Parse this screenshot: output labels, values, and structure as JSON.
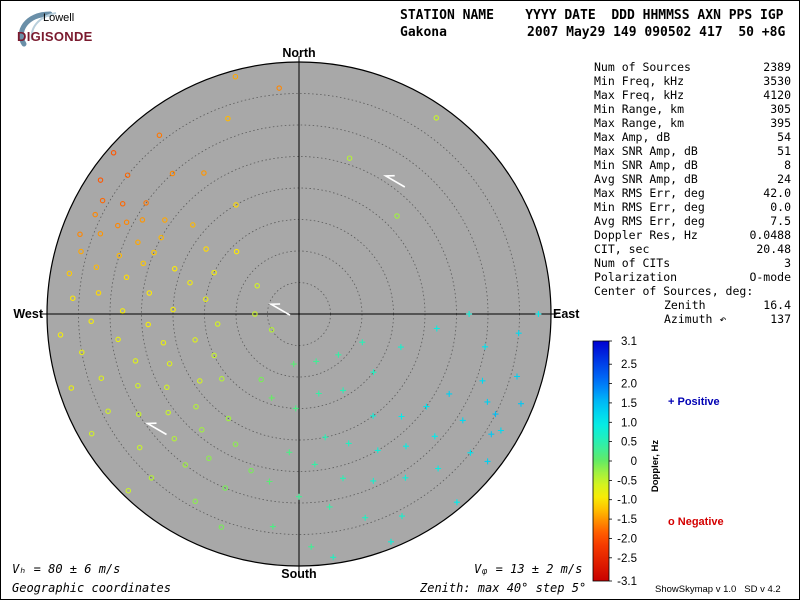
{
  "logo": {
    "line1": "Lowell",
    "line2": "DIGISONDE"
  },
  "header": {
    "row1": "STATION NAME    YYYY DATE  DDD HHMMSS AXN PPS IGP",
    "station": "Gakona",
    "values": "2007 May29 149 090502 417  50 +8G"
  },
  "params": [
    {
      "label": "Num of Sources",
      "value": "2389"
    },
    {
      "label": "Min Freq, kHz",
      "value": "3530"
    },
    {
      "label": "Max Freq, kHz",
      "value": "4120"
    },
    {
      "label": "Min Range, km",
      "value": "305"
    },
    {
      "label": "Max Range, km",
      "value": "395"
    },
    {
      "label": "Max Amp, dB",
      "value": "54"
    },
    {
      "label": "Max SNR Amp, dB",
      "value": "51"
    },
    {
      "label": "Min SNR Amp, dB",
      "value": "8"
    },
    {
      "label": "Avg SNR Amp, dB",
      "value": "24"
    },
    {
      "label": "Max RMS Err, deg",
      "value": "42.0"
    },
    {
      "label": "Min RMS Err, deg",
      "value": "0.0"
    },
    {
      "label": "Avg RMS Err, deg",
      "value": "7.5"
    },
    {
      "label": "Doppler Res, Hz",
      "value": "0.0488"
    },
    {
      "label": "CIT, sec",
      "value": "20.48"
    },
    {
      "label": "Num of CITs",
      "value": "3"
    },
    {
      "label": "Polarization",
      "value": "O-mode"
    }
  ],
  "center": {
    "header": "Center of Sources, deg:",
    "zenith_label": "Zenith",
    "zenith_value": "16.4",
    "azimuth_label": "Azimuth",
    "azimuth_arrow": "↶",
    "azimuth_value": "137"
  },
  "legend": {
    "positive": "+ Positive",
    "negative": "o Negative"
  },
  "footer": {
    "vh": "Vₕ = 80 ± 6 m/s",
    "vz": "Vᵩ = 13 ± 2 m/s",
    "coords": "Geographic coordinates",
    "zenith": "Zenith: max 40°  step 5°",
    "tool": "ShowSkymap v 1.0   SD v 4.2"
  },
  "chart_data": {
    "type": "scatter",
    "projection": "polar-skymap",
    "directions": {
      "north": "North",
      "south": "South",
      "east": "East",
      "west": "West"
    },
    "zenith_max_deg": 40,
    "zenith_step_deg": 5,
    "colorbar": {
      "label": "Doppler, Hz",
      "min": -3.1,
      "max": 3.1,
      "ticks": [
        "3.1",
        "2.5",
        "2.0",
        "1.5",
        "1.0",
        "0.5",
        "0",
        "-0.5",
        "-1.0",
        "-1.5",
        "-2.0",
        "-2.5",
        "-3.1"
      ]
    },
    "colors": {
      "disk": "#a8a8a8",
      "ring": "#5a5a5a",
      "positive_label": "#0000b4",
      "negative_label": "#d40000"
    },
    "points": [
      {
        "az": 300,
        "zen": 36,
        "doppler": -1.8
      },
      {
        "az": 302,
        "zen": 33,
        "doppler": -1.8
      },
      {
        "az": 296,
        "zen": 36,
        "doppler": -1.6
      },
      {
        "az": 298,
        "zen": 31,
        "doppler": -1.6
      },
      {
        "az": 304,
        "zen": 38,
        "doppler": -1.9
      },
      {
        "az": 292,
        "zen": 34,
        "doppler": -1.5
      },
      {
        "az": 290,
        "zen": 37,
        "doppler": -1.6
      },
      {
        "az": 306,
        "zen": 30,
        "doppler": -1.7
      },
      {
        "az": 288,
        "zen": 30,
        "doppler": -1.3
      },
      {
        "az": 294,
        "zen": 28,
        "doppler": -1.4
      },
      {
        "az": 286,
        "zen": 36,
        "doppler": -1.4
      },
      {
        "az": 299,
        "zen": 25,
        "doppler": -1.3
      },
      {
        "az": 283,
        "zen": 33,
        "doppler": -1.3
      },
      {
        "az": 309,
        "zen": 35,
        "doppler": -1.8
      },
      {
        "az": 311,
        "zen": 39,
        "doppler": -1.9
      },
      {
        "az": 280,
        "zen": 37,
        "doppler": -1.2
      },
      {
        "az": 296,
        "zen": 32,
        "doppler": -1.6
      },
      {
        "az": 301,
        "zen": 29,
        "doppler": -1.5
      },
      {
        "az": 293,
        "zen": 25,
        "doppler": -1.2
      },
      {
        "az": 305,
        "zen": 26,
        "doppler": -1.4
      },
      {
        "az": 288,
        "zen": 26,
        "doppler": -1.2
      },
      {
        "az": 282,
        "zen": 28,
        "doppler": -1.1
      },
      {
        "az": 276,
        "zen": 32,
        "doppler": -1.1
      },
      {
        "az": 274,
        "zen": 36,
        "doppler": -1.0
      },
      {
        "az": 278,
        "zen": 24,
        "doppler": -1.0
      },
      {
        "az": 271,
        "zen": 28,
        "doppler": -0.9
      },
      {
        "az": 268,
        "zen": 33,
        "doppler": -0.9
      },
      {
        "az": 266,
        "zen": 24,
        "doppler": -0.9
      },
      {
        "az": 262,
        "zen": 29,
        "doppler": -0.8
      },
      {
        "az": 260,
        "zen": 35,
        "doppler": -0.8
      },
      {
        "az": 258,
        "zen": 22,
        "doppler": -0.8
      },
      {
        "az": 254,
        "zen": 27,
        "doppler": -0.7
      },
      {
        "az": 252,
        "zen": 33,
        "doppler": -0.7
      },
      {
        "az": 249,
        "zen": 22,
        "doppler": -0.7
      },
      {
        "az": 246,
        "zen": 28,
        "doppler": -0.6
      },
      {
        "az": 243,
        "zen": 34,
        "doppler": -0.6
      },
      {
        "az": 241,
        "zen": 24,
        "doppler": -0.6
      },
      {
        "az": 238,
        "zen": 30,
        "doppler": -0.5
      },
      {
        "az": 236,
        "zen": 19,
        "doppler": -0.6
      },
      {
        "az": 233,
        "zen": 26,
        "doppler": -0.5
      },
      {
        "az": 230,
        "zen": 33,
        "doppler": -0.5
      },
      {
        "az": 228,
        "zen": 22,
        "doppler": -0.4
      },
      {
        "az": 225,
        "zen": 28,
        "doppler": -0.4
      },
      {
        "az": 222,
        "zen": 35,
        "doppler": -0.4
      },
      {
        "az": 220,
        "zen": 24,
        "doppler": -0.3
      },
      {
        "az": 217,
        "zen": 30,
        "doppler": -0.3
      },
      {
        "az": 214,
        "zen": 20,
        "doppler": -0.3
      },
      {
        "az": 212,
        "zen": 27,
        "doppler": -0.2
      },
      {
        "az": 209,
        "zen": 34,
        "doppler": -0.2
      },
      {
        "az": 206,
        "zen": 23,
        "doppler": -0.2
      },
      {
        "az": 203,
        "zen": 30,
        "doppler": -0.1
      },
      {
        "az": 200,
        "zen": 36,
        "doppler": -0.1
      },
      {
        "az": 197,
        "zen": 26,
        "doppler": -0.1
      },
      {
        "az": 272,
        "zen": 20,
        "doppler": -0.9
      },
      {
        "az": 256,
        "zen": 17,
        "doppler": -0.7
      },
      {
        "az": 290,
        "zen": 21,
        "doppler": -1.0
      },
      {
        "az": 263,
        "zen": 13,
        "doppler": -0.6
      },
      {
        "az": 279,
        "zen": 15,
        "doppler": -0.8
      },
      {
        "az": 244,
        "zen": 15,
        "doppler": -0.5
      },
      {
        "az": 230,
        "zen": 16,
        "doppler": -0.4
      },
      {
        "az": 252,
        "zen": 38,
        "doppler": -0.8
      },
      {
        "az": 265,
        "zen": 38,
        "doppler": -0.9
      },
      {
        "az": 240,
        "zen": 38,
        "doppler": -0.6
      },
      {
        "az": 224,
        "zen": 39,
        "doppler": -0.5
      },
      {
        "az": 310,
        "zen": 22,
        "doppler": -1.3
      },
      {
        "az": 318,
        "zen": 30,
        "doppler": -1.6
      },
      {
        "az": 322,
        "zen": 36,
        "doppler": -1.7
      },
      {
        "az": 326,
        "zen": 27,
        "doppler": -1.5
      },
      {
        "az": 315,
        "zen": 14,
        "doppler": -1.0
      },
      {
        "az": 330,
        "zen": 20,
        "doppler": -1.1
      },
      {
        "az": 340,
        "zen": 33,
        "doppler": -1.3
      },
      {
        "az": 345,
        "zen": 39,
        "doppler": -1.4
      },
      {
        "az": 305,
        "zen": 18,
        "doppler": -1.1
      },
      {
        "az": 286,
        "zen": 18,
        "doppler": -0.9
      },
      {
        "az": 296,
        "zen": 15,
        "doppler": -0.9
      },
      {
        "az": 190,
        "zen": 27,
        "doppler": 0.1
      },
      {
        "az": 187,
        "zen": 34,
        "doppler": 0.2
      },
      {
        "az": 184,
        "zen": 22,
        "doppler": 0.2
      },
      {
        "az": 180,
        "zen": 29,
        "doppler": 0.3
      },
      {
        "az": 177,
        "zen": 37,
        "doppler": 0.3
      },
      {
        "az": 174,
        "zen": 24,
        "doppler": 0.4
      },
      {
        "az": 171,
        "zen": 31,
        "doppler": 0.4
      },
      {
        "az": 168,
        "zen": 20,
        "doppler": 0.5
      },
      {
        "az": 165,
        "zen": 27,
        "doppler": 0.5
      },
      {
        "az": 162,
        "zen": 34,
        "doppler": 0.6
      },
      {
        "az": 159,
        "zen": 22,
        "doppler": 0.6
      },
      {
        "az": 156,
        "zen": 29,
        "doppler": 0.7
      },
      {
        "az": 153,
        "zen": 36,
        "doppler": 0.7
      },
      {
        "az": 150,
        "zen": 25,
        "doppler": 0.8
      },
      {
        "az": 147,
        "zen": 31,
        "doppler": 0.8
      },
      {
        "az": 144,
        "zen": 20,
        "doppler": 0.8
      },
      {
        "az": 141,
        "zen": 27,
        "doppler": 0.9
      },
      {
        "az": 138,
        "zen": 33,
        "doppler": 0.9
      },
      {
        "az": 135,
        "zen": 23,
        "doppler": 1.0
      },
      {
        "az": 132,
        "zen": 29,
        "doppler": 1.0
      },
      {
        "az": 129,
        "zen": 35,
        "doppler": 1.1
      },
      {
        "az": 126,
        "zen": 25,
        "doppler": 1.1
      },
      {
        "az": 123,
        "zen": 31,
        "doppler": 1.2
      },
      {
        "az": 120,
        "zen": 37,
        "doppler": 1.2
      },
      {
        "az": 118,
        "zen": 27,
        "doppler": 1.3
      },
      {
        "az": 115,
        "zen": 33,
        "doppler": 1.3
      },
      {
        "az": 112,
        "zen": 38,
        "doppler": 1.4
      },
      {
        "az": 122,
        "zen": 36,
        "doppler": 1.4
      },
      {
        "az": 128,
        "zen": 38,
        "doppler": 1.3
      },
      {
        "az": 117,
        "zen": 35,
        "doppler": 1.5
      },
      {
        "az": 110,
        "zen": 31,
        "doppler": 1.2
      },
      {
        "az": 106,
        "zen": 36,
        "doppler": 1.3
      },
      {
        "az": 100,
        "zen": 30,
        "doppler": 1.1
      },
      {
        "az": 95,
        "zen": 35,
        "doppler": 1.2
      },
      {
        "az": 96,
        "zen": 22,
        "doppler": 0.9
      },
      {
        "az": 90,
        "zen": 38,
        "doppler": 1.0
      },
      {
        "az": 90,
        "zen": 27,
        "doppler": 0.8
      },
      {
        "az": 108,
        "zen": 17,
        "doppler": 0.7
      },
      {
        "az": 128,
        "zen": 15,
        "doppler": 0.6
      },
      {
        "az": 150,
        "zen": 14,
        "doppler": 0.5
      },
      {
        "az": 166,
        "zen": 13,
        "doppler": 0.4
      },
      {
        "az": 182,
        "zen": 15,
        "doppler": 0.2
      },
      {
        "az": 198,
        "zen": 14,
        "doppler": 0.0
      },
      {
        "az": 210,
        "zen": 12,
        "doppler": -0.1
      },
      {
        "az": 136,
        "zen": 9,
        "doppler": 0.4
      },
      {
        "az": 114,
        "zen": 11,
        "doppler": 0.5
      },
      {
        "az": 160,
        "zen": 8,
        "doppler": 0.3
      },
      {
        "az": 186,
        "zen": 8,
        "doppler": 0.1
      },
      {
        "az": 140,
        "zen": 39,
        "doppler": 1.0
      },
      {
        "az": 158,
        "zen": 39,
        "doppler": 0.8
      },
      {
        "az": 172,
        "zen": 39,
        "doppler": 0.6
      },
      {
        "az": 45,
        "zen": 22,
        "doppler": -0.3
      },
      {
        "az": 18,
        "zen": 26,
        "doppler": -0.4
      },
      {
        "az": 355,
        "zen": 36,
        "doppler": -1.6
      },
      {
        "az": 35,
        "zen": 38,
        "doppler": -0.5
      },
      {
        "az": 240,
        "zen": 5,
        "doppler": -0.4
      },
      {
        "az": 270,
        "zen": 7,
        "doppler": -0.5
      },
      {
        "az": 304,
        "zen": 8,
        "doppler": -0.6
      }
    ],
    "vectors": [
      {
        "az": 36,
        "zen": 26,
        "dir": 300
      },
      {
        "az": 283,
        "zen": 3,
        "dir": 300
      },
      {
        "az": 231,
        "zen": 29,
        "dir": 300
      }
    ]
  }
}
